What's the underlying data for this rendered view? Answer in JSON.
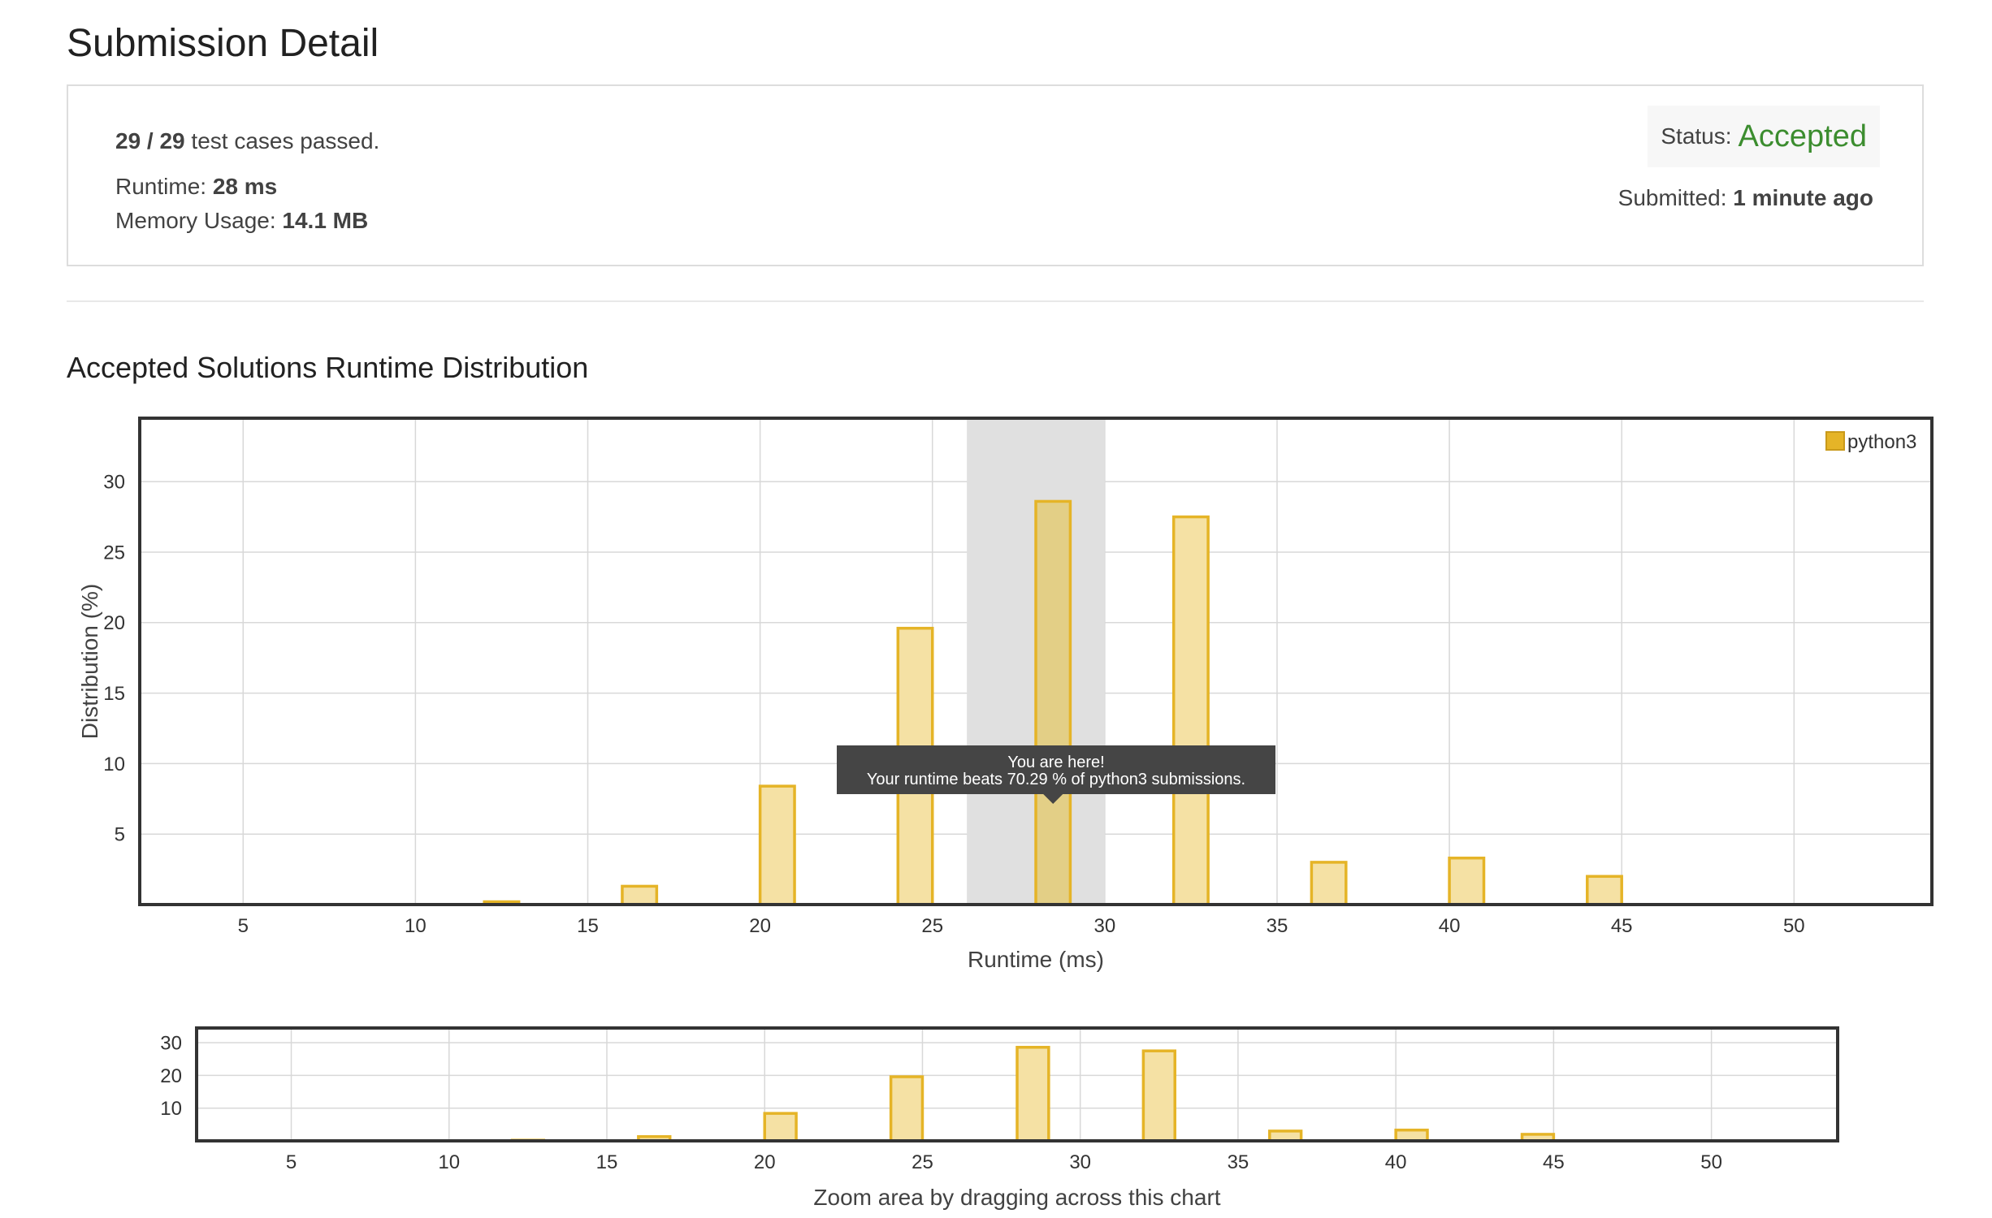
{
  "header": {
    "title": "Submission Detail"
  },
  "summary": {
    "tests_passed": "29 / 29",
    "tests_suffix": " test cases passed.",
    "runtime_label": "Runtime: ",
    "runtime_value": "28 ms",
    "memory_label": "Memory Usage: ",
    "memory_value": "14.1 MB",
    "status_label": "Status:",
    "status_value": "Accepted",
    "submitted_label": "Submitted: ",
    "submitted_value": "1 minute ago"
  },
  "colors": {
    "accepted": "#3c8d2f",
    "bar_fill": "#f5e1a4",
    "bar_stroke": "#e5b427",
    "highlight_band": "#e0e0e0",
    "tooltip_bg": "#454545"
  },
  "chart_section": {
    "title": "Accepted Solutions Runtime Distribution"
  },
  "chart_data": [
    {
      "type": "bar",
      "xlabel": "Runtime (ms)",
      "ylabel": "Distribution (%)",
      "xlim": [
        2,
        54
      ],
      "ylim": [
        0,
        34.5
      ],
      "xticks": [
        5,
        10,
        15,
        20,
        25,
        30,
        35,
        40,
        45,
        50
      ],
      "yticks": [
        5,
        10,
        15,
        20,
        25,
        30
      ],
      "grid": true,
      "legend_position": "top-right",
      "series": [
        {
          "name": "python3",
          "x": [
            12.5,
            16.5,
            20.5,
            24.5,
            28.5,
            32.5,
            36.5,
            40.5,
            44.5
          ],
          "values": [
            0.2,
            1.3,
            8.4,
            19.6,
            28.6,
            27.5,
            3.0,
            3.3,
            2.0
          ]
        }
      ],
      "highlight": {
        "x_range": [
          26,
          30
        ],
        "bar_x": 28.5
      },
      "tooltip": {
        "line1": "You are here!",
        "line2": "Your runtime beats 70.29 % of python3 submissions."
      }
    },
    {
      "type": "bar",
      "caption": "Zoom area by dragging across this chart",
      "xlim": [
        2,
        54
      ],
      "ylim": [
        0,
        34.5
      ],
      "xticks": [
        5,
        10,
        15,
        20,
        25,
        30,
        35,
        40,
        45,
        50
      ],
      "yticks": [
        10,
        20,
        30
      ],
      "grid": true,
      "series": [
        {
          "name": "python3",
          "x": [
            12.5,
            16.5,
            20.5,
            24.5,
            28.5,
            32.5,
            36.5,
            40.5,
            44.5
          ],
          "values": [
            0.2,
            1.3,
            8.4,
            19.6,
            28.6,
            27.5,
            3.0,
            3.3,
            2.0
          ]
        }
      ]
    }
  ]
}
